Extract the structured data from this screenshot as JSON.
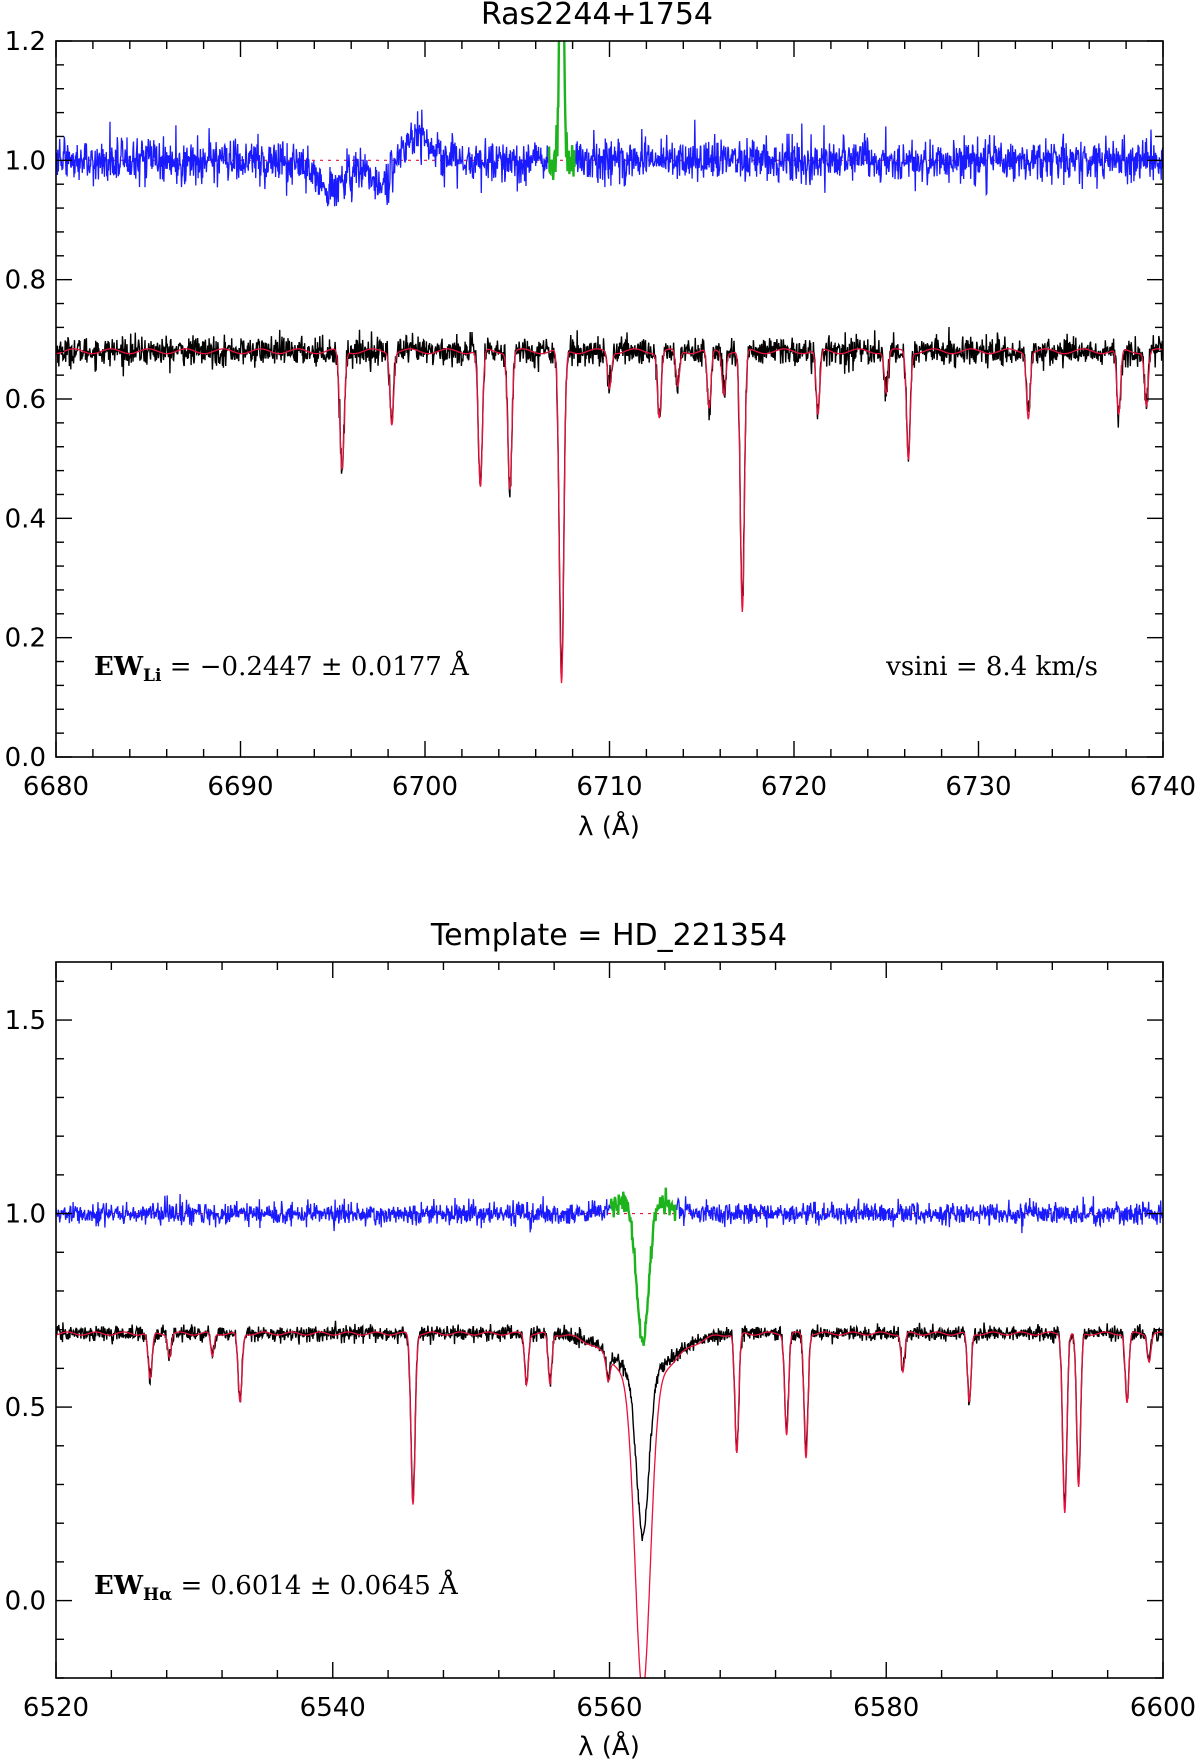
{
  "chart_data": [
    {
      "type": "line",
      "title": "Ras2244+1754",
      "xlabel": "λ (Å)",
      "ylabel": "",
      "xlim": [
        6680,
        6740
      ],
      "ylim": [
        0.0,
        1.2
      ],
      "xticks": [
        6680,
        6690,
        6700,
        6710,
        6720,
        6730,
        6740
      ],
      "xtick_labels": [
        "6680",
        "6690",
        "6700",
        "6710",
        "6720",
        "6730",
        "6740"
      ],
      "yticks": [
        0.0,
        0.2,
        0.4,
        0.6,
        0.8,
        1.0,
        1.2
      ],
      "ytick_labels": [
        "0.0",
        "0.2",
        "0.4",
        "0.6",
        "0.8",
        "1.0",
        "1.2"
      ],
      "grid": false,
      "annotations": {
        "ew": {
          "label": "EW",
          "subscript": "Li",
          "text": " = −0.2447 ± 0.0177 Å"
        },
        "vsini": "vsini = 8.4 km/s"
      },
      "continuum_level": 0.68,
      "residual_level": 1.0,
      "residual_noise": 0.018,
      "observed_noise": 0.012,
      "residual_bumps": [
        {
          "center": 6694.8,
          "depth": 0.05,
          "sigma": 0.8
        },
        {
          "center": 6697.6,
          "depth": 0.04,
          "sigma": 0.6
        },
        {
          "center": 6699.6,
          "depth": -0.04,
          "sigma": 0.7
        }
      ],
      "absorption_lines": [
        {
          "center": 6695.5,
          "depth": 0.2,
          "sigma": 0.12
        },
        {
          "center": 6698.2,
          "depth": 0.12,
          "sigma": 0.1
        },
        {
          "center": 6703.0,
          "depth": 0.23,
          "sigma": 0.11
        },
        {
          "center": 6704.6,
          "depth": 0.23,
          "sigma": 0.11
        },
        {
          "center": 6707.4,
          "depth": 0.56,
          "sigma": 0.12
        },
        {
          "center": 6710.0,
          "depth": 0.06,
          "sigma": 0.1
        },
        {
          "center": 6712.7,
          "depth": 0.11,
          "sigma": 0.1
        },
        {
          "center": 6713.7,
          "depth": 0.06,
          "sigma": 0.1
        },
        {
          "center": 6715.4,
          "depth": 0.1,
          "sigma": 0.1
        },
        {
          "center": 6716.2,
          "depth": 0.07,
          "sigma": 0.1
        },
        {
          "center": 6717.2,
          "depth": 0.44,
          "sigma": 0.11
        },
        {
          "center": 6721.3,
          "depth": 0.11,
          "sigma": 0.1
        },
        {
          "center": 6725.0,
          "depth": 0.07,
          "sigma": 0.1
        },
        {
          "center": 6726.2,
          "depth": 0.18,
          "sigma": 0.1
        },
        {
          "center": 6732.7,
          "depth": 0.11,
          "sigma": 0.1
        },
        {
          "center": 6737.6,
          "depth": 0.11,
          "sigma": 0.1
        },
        {
          "center": 6739.1,
          "depth": 0.09,
          "sigma": 0.1
        }
      ],
      "residual_feature": {
        "center": 6707.4,
        "depth": -0.57,
        "sigma": 0.1,
        "start": 6706.7,
        "end": 6708.1
      },
      "series": [
        {
          "key": "residual",
          "color": "#1a1aff",
          "width": 1.3
        },
        {
          "key": "feature",
          "color": "#1db31d",
          "width": 2.4
        },
        {
          "key": "observed",
          "color": "#000000",
          "width": 1.4
        },
        {
          "key": "template",
          "color": "#e8123c",
          "width": 1.3
        }
      ]
    },
    {
      "type": "line",
      "title": "Template = HD_221354",
      "xlabel": "λ (Å)",
      "ylabel": "",
      "xlim": [
        6520,
        6600
      ],
      "ylim": [
        -0.2,
        1.65
      ],
      "xticks": [
        6520,
        6540,
        6560,
        6580,
        6600
      ],
      "xtick_labels": [
        "6520",
        "6540",
        "6560",
        "6580",
        "6600"
      ],
      "yticks": [
        0.0,
        0.5,
        1.0,
        1.5
      ],
      "ytick_labels": [
        "0.0",
        "0.5",
        "1.0",
        "1.5"
      ],
      "grid": false,
      "annotations": {
        "ew": {
          "label": "EW",
          "subscript": "Hα",
          "text": " = 0.6014 ± 0.0645 Å"
        }
      },
      "continuum_level": 0.69,
      "residual_level": 1.0,
      "residual_noise": 0.014,
      "observed_noise": 0.01,
      "residual_bumps": [],
      "absorption_lines": [
        {
          "center": 6526.8,
          "depth": 0.12,
          "sigma": 0.14
        },
        {
          "center": 6528.2,
          "depth": 0.06,
          "sigma": 0.12
        },
        {
          "center": 6531.3,
          "depth": 0.06,
          "sigma": 0.12
        },
        {
          "center": 6533.3,
          "depth": 0.18,
          "sigma": 0.14
        },
        {
          "center": 6545.8,
          "depth": 0.44,
          "sigma": 0.15
        },
        {
          "center": 6554.0,
          "depth": 0.13,
          "sigma": 0.13
        },
        {
          "center": 6555.7,
          "depth": 0.13,
          "sigma": 0.13
        },
        {
          "center": 6559.9,
          "depth": 0.06,
          "sigma": 0.13
        },
        {
          "center": 6569.2,
          "depth": 0.31,
          "sigma": 0.14
        },
        {
          "center": 6572.8,
          "depth": 0.26,
          "sigma": 0.14
        },
        {
          "center": 6574.2,
          "depth": 0.32,
          "sigma": 0.14
        },
        {
          "center": 6581.2,
          "depth": 0.1,
          "sigma": 0.13
        },
        {
          "center": 6586.0,
          "depth": 0.18,
          "sigma": 0.13
        },
        {
          "center": 6592.9,
          "depth": 0.46,
          "sigma": 0.15
        },
        {
          "center": 6593.9,
          "depth": 0.4,
          "sigma": 0.14
        },
        {
          "center": 6597.4,
          "depth": 0.18,
          "sigma": 0.13
        },
        {
          "center": 6599.0,
          "depth": 0.07,
          "sigma": 0.13
        }
      ],
      "halpha": {
        "center": 6562.4,
        "template_depth": 0.8,
        "template_sigma": 0.55,
        "wing_depth": 0.12,
        "wing_sigma": 2.2,
        "observed_depth": 0.42,
        "observed_sigma": 0.45
      },
      "residual_feature": {
        "center": 6562.4,
        "depth": 0.38,
        "sigma": 0.45,
        "wing": 0.05,
        "wing_sigma": 1.6,
        "start": 6560.1,
        "end": 6564.8
      },
      "series": [
        {
          "key": "residual",
          "color": "#1a1aff",
          "width": 1.3
        },
        {
          "key": "feature",
          "color": "#1db31d",
          "width": 2.4
        },
        {
          "key": "observed",
          "color": "#000000",
          "width": 1.4
        },
        {
          "key": "template",
          "color": "#e8123c",
          "width": 1.3
        }
      ]
    }
  ]
}
